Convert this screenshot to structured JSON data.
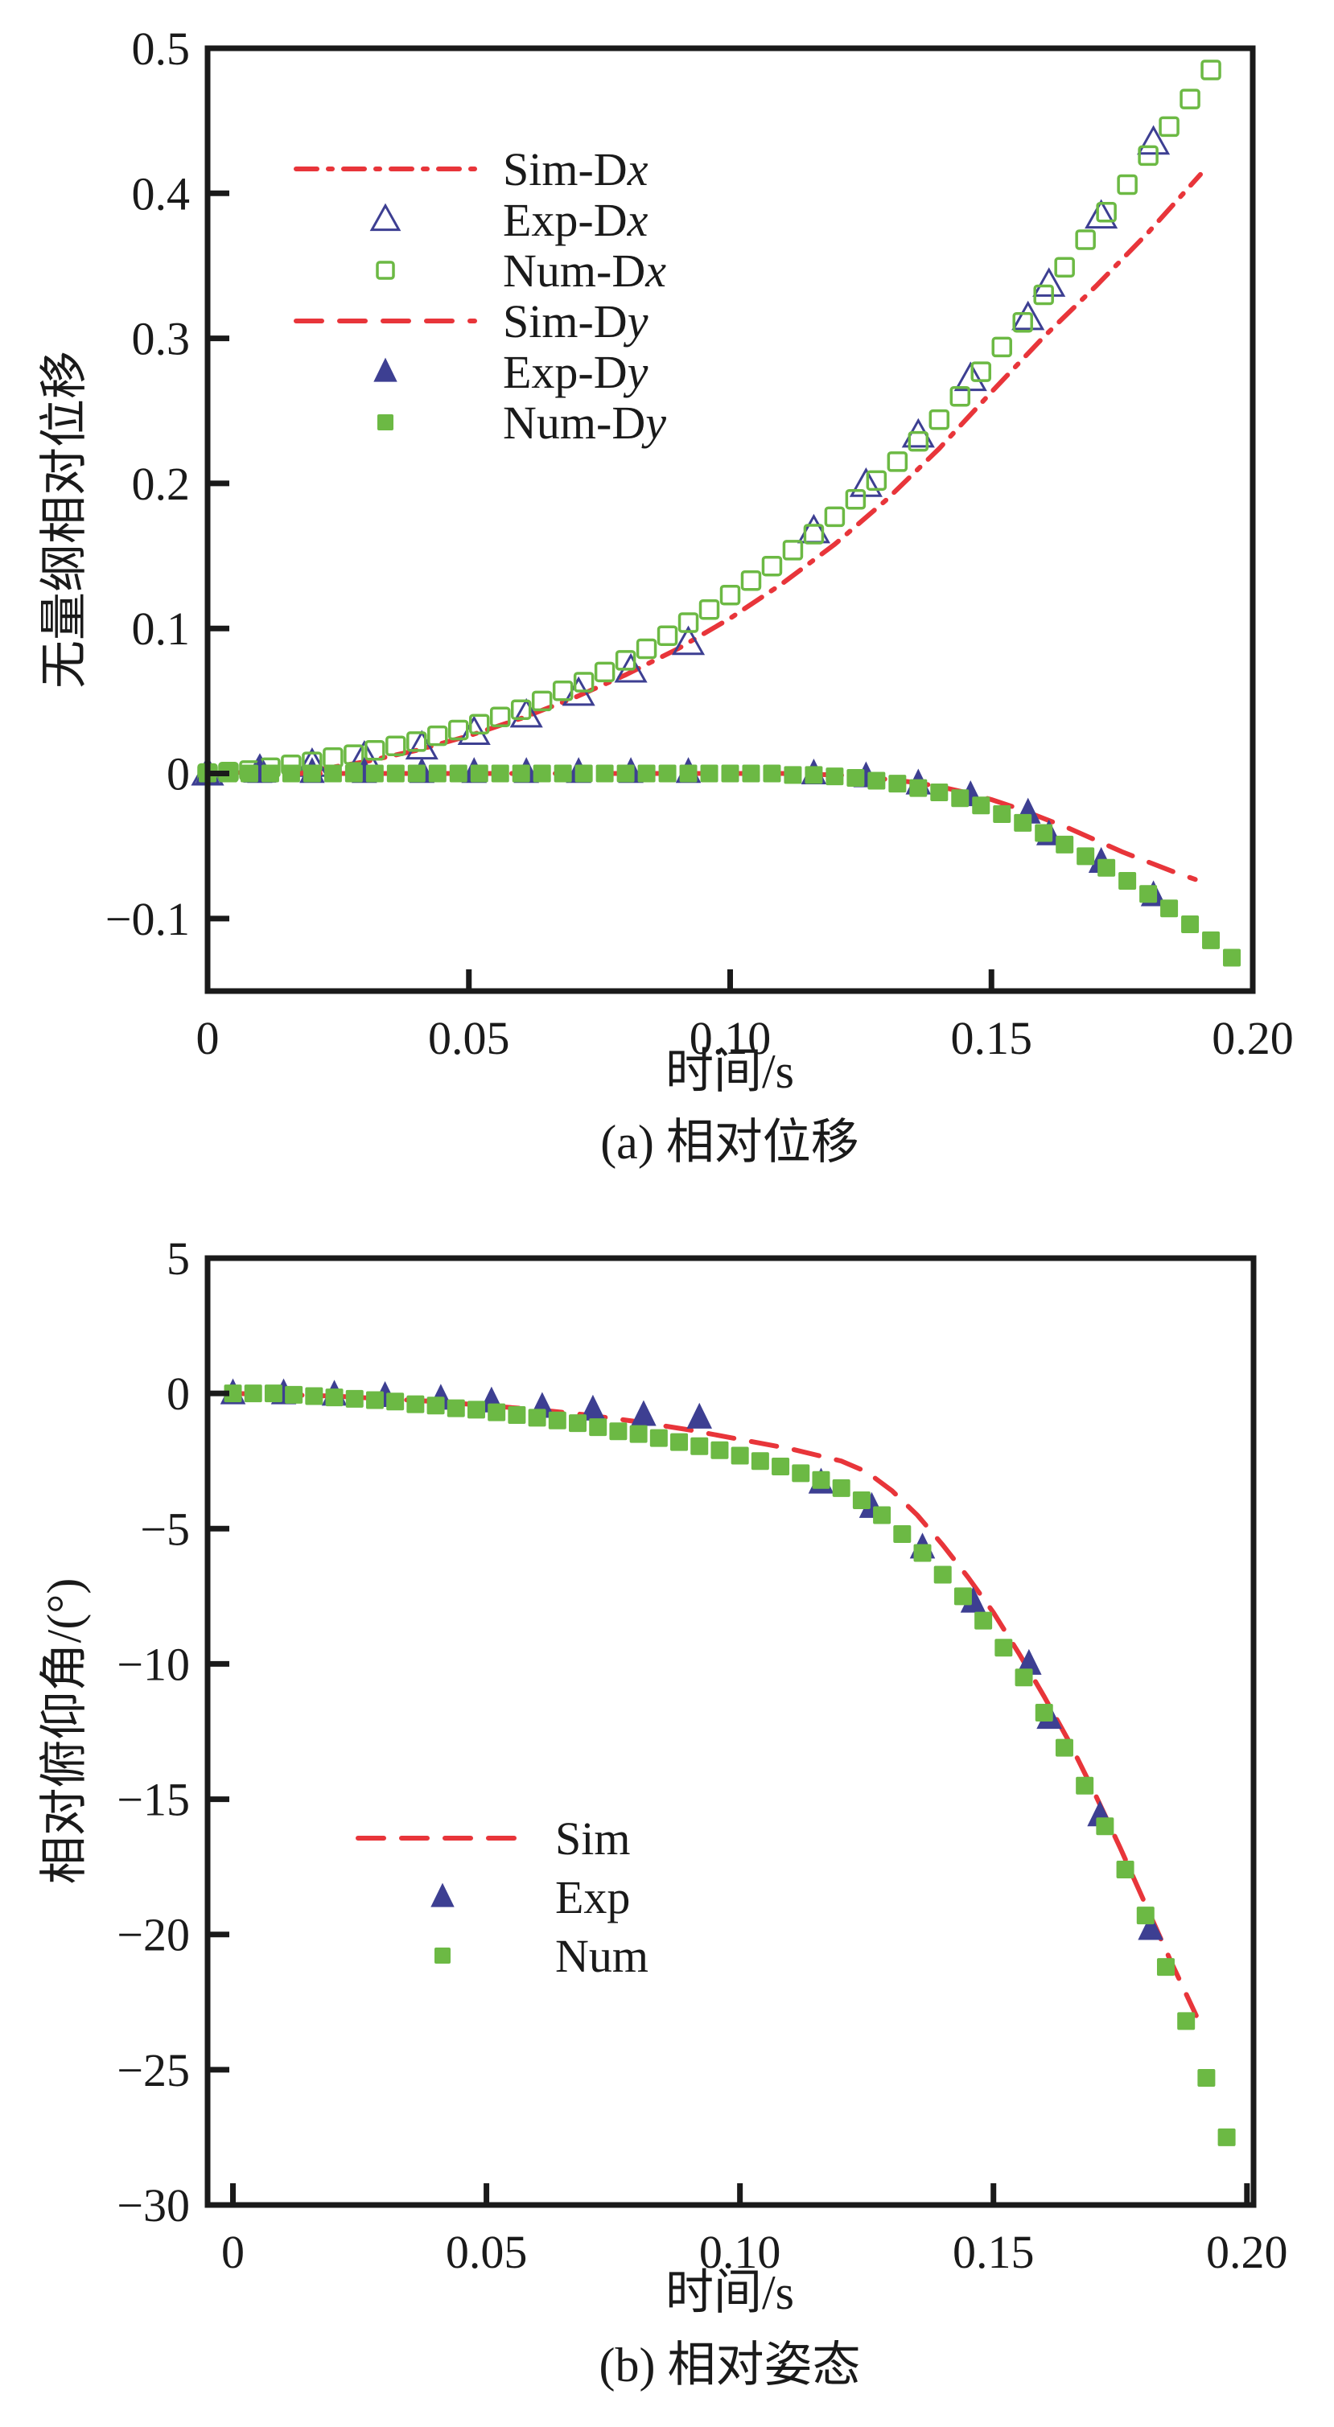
{
  "colors": {
    "sim": "#e8353a",
    "exp": "#3d3f92",
    "num": "#6cb944",
    "axis": "#1a1a1a"
  },
  "chart_data": [
    {
      "id": "a",
      "type": "line+scatter",
      "caption": "(a) 相对位移",
      "xlabel": "时间/s",
      "ylabel": "无量纲相对位移",
      "xlim": [
        0,
        0.2
      ],
      "ylim": [
        -0.15,
        0.5
      ],
      "xticks": [
        0,
        0.05,
        0.1,
        0.15,
        0.2
      ],
      "xtick_labels": [
        "0",
        "0.05",
        "0.10",
        "0.15",
        "0.20"
      ],
      "yticks": [
        -0.1,
        0,
        0.1,
        0.2,
        0.3,
        0.4,
        0.5
      ],
      "ytick_labels": [
        "−0.1",
        "0",
        "0.1",
        "0.2",
        "0.3",
        "0.4",
        "0.5"
      ],
      "grid": false,
      "legend_position": "top-left",
      "series": [
        {
          "name": "Sim-Dx",
          "label_prefix": "Sim-D",
          "label_var": "x",
          "kind": "line",
          "style": "dash-dot",
          "color_key": "sim",
          "x": [
            0,
            0.02,
            0.03,
            0.04,
            0.05,
            0.06,
            0.07,
            0.08,
            0.09,
            0.1,
            0.11,
            0.12,
            0.13,
            0.14,
            0.15,
            0.16,
            0.17,
            0.18,
            0.19
          ],
          "y": [
            0,
            0.002,
            0.008,
            0.016,
            0.026,
            0.038,
            0.052,
            0.068,
            0.086,
            0.107,
            0.131,
            0.158,
            0.189,
            0.224,
            0.263,
            0.301,
            0.336,
            0.373,
            0.413
          ]
        },
        {
          "name": "Exp-Dx",
          "label_prefix": "Exp-D",
          "label_var": "x",
          "kind": "scatter",
          "marker": "triangle-open",
          "color_key": "exp",
          "x": [
            0,
            0.01,
            0.02,
            0.03,
            0.041,
            0.051,
            0.061,
            0.071,
            0.081,
            0.092,
            0.116,
            0.126,
            0.136,
            0.146,
            0.157,
            0.161,
            0.171,
            0.181
          ],
          "y": [
            0,
            0.002,
            0.006,
            0.011,
            0.018,
            0.028,
            0.04,
            0.055,
            0.071,
            0.09,
            0.167,
            0.199,
            0.233,
            0.272,
            0.314,
            0.337,
            0.384,
            0.435
          ]
        },
        {
          "name": "Num-Dx",
          "label_prefix": "Num-D",
          "label_var": "x",
          "kind": "scatter",
          "marker": "square-open",
          "color_key": "num",
          "x": [
            0,
            0.004,
            0.008,
            0.012,
            0.016,
            0.02,
            0.024,
            0.028,
            0.032,
            0.036,
            0.04,
            0.044,
            0.048,
            0.052,
            0.056,
            0.06,
            0.064,
            0.068,
            0.072,
            0.076,
            0.08,
            0.084,
            0.088,
            0.092,
            0.096,
            0.1,
            0.104,
            0.108,
            0.112,
            0.116,
            0.12,
            0.124,
            0.128,
            0.132,
            0.136,
            0.14,
            0.144,
            0.148,
            0.152,
            0.156,
            0.16,
            0.164,
            0.168,
            0.172,
            0.176,
            0.18,
            0.184,
            0.188,
            0.192
          ],
          "y": [
            0,
            0.001,
            0.002,
            0.004,
            0.006,
            0.008,
            0.011,
            0.013,
            0.016,
            0.019,
            0.022,
            0.026,
            0.03,
            0.034,
            0.039,
            0.044,
            0.05,
            0.057,
            0.063,
            0.07,
            0.078,
            0.086,
            0.095,
            0.104,
            0.113,
            0.123,
            0.133,
            0.143,
            0.154,
            0.165,
            0.177,
            0.189,
            0.202,
            0.215,
            0.229,
            0.244,
            0.26,
            0.277,
            0.294,
            0.311,
            0.33,
            0.349,
            0.368,
            0.387,
            0.406,
            0.426,
            0.446,
            0.465,
            0.485
          ]
        },
        {
          "name": "Sim-Dy",
          "label_prefix": "Sim-D",
          "label_var": "y",
          "kind": "line",
          "style": "dashed",
          "color_key": "sim",
          "x": [
            0,
            0.02,
            0.04,
            0.06,
            0.08,
            0.1,
            0.11,
            0.12,
            0.125,
            0.13,
            0.135,
            0.14,
            0.145,
            0.15,
            0.155,
            0.16,
            0.165,
            0.17,
            0.175,
            0.18,
            0.185,
            0.189
          ],
          "y": [
            0,
            0,
            0,
            0,
            0,
            0,
            0,
            -0.001,
            -0.002,
            -0.004,
            -0.006,
            -0.009,
            -0.013,
            -0.018,
            -0.024,
            -0.031,
            -0.038,
            -0.046,
            -0.054,
            -0.061,
            -0.068,
            -0.073
          ]
        },
        {
          "name": "Exp-Dy",
          "label_prefix": "Exp-D",
          "label_var": "y",
          "kind": "scatter",
          "marker": "triangle-filled",
          "color_key": "exp",
          "x": [
            0,
            0.01,
            0.02,
            0.03,
            0.041,
            0.051,
            0.061,
            0.071,
            0.081,
            0.092,
            0.116,
            0.126,
            0.136,
            0.146,
            0.157,
            0.161,
            0.171,
            0.181
          ],
          "y": [
            0,
            0.001,
            0.001,
            0.001,
            0.001,
            0.001,
            0.001,
            0.001,
            0.001,
            0.001,
            0,
            -0.002,
            -0.007,
            -0.015,
            -0.027,
            -0.042,
            -0.061,
            -0.084
          ]
        },
        {
          "name": "Num-Dy",
          "label_prefix": "Num-D",
          "label_var": "y",
          "kind": "scatter",
          "marker": "square-filled",
          "color_key": "num",
          "x": [
            0,
            0.004,
            0.008,
            0.012,
            0.016,
            0.02,
            0.024,
            0.028,
            0.032,
            0.036,
            0.04,
            0.044,
            0.048,
            0.052,
            0.056,
            0.06,
            0.064,
            0.068,
            0.072,
            0.076,
            0.08,
            0.084,
            0.088,
            0.092,
            0.096,
            0.1,
            0.104,
            0.108,
            0.112,
            0.116,
            0.12,
            0.124,
            0.128,
            0.132,
            0.136,
            0.14,
            0.144,
            0.148,
            0.152,
            0.156,
            0.16,
            0.164,
            0.168,
            0.172,
            0.176,
            0.18,
            0.184,
            0.188,
            0.192,
            0.196
          ],
          "y": [
            0,
            0,
            0,
            0,
            0,
            0,
            0,
            0,
            0,
            0,
            0,
            0,
            0,
            0,
            0,
            0,
            0,
            0,
            0,
            0,
            0,
            0,
            0,
            0,
            0,
            0,
            0,
            0,
            -0.001,
            -0.001,
            -0.002,
            -0.003,
            -0.005,
            -0.007,
            -0.01,
            -0.013,
            -0.017,
            -0.022,
            -0.028,
            -0.034,
            -0.041,
            -0.049,
            -0.057,
            -0.065,
            -0.074,
            -0.083,
            -0.093,
            -0.104,
            -0.115,
            -0.127
          ]
        }
      ]
    },
    {
      "id": "b",
      "type": "line+scatter",
      "caption": "(b) 相对姿态",
      "xlabel": "时间/s",
      "ylabel": "相对俯仰角/(°)",
      "xlim": [
        -0.005,
        0.2013
      ],
      "ylim": [
        -30,
        5
      ],
      "xticks": [
        0,
        0.05,
        0.1,
        0.15,
        0.2
      ],
      "xtick_labels": [
        "0",
        "0.05",
        "0.10",
        "0.15",
        "0.20"
      ],
      "yticks": [
        -30,
        -25,
        -20,
        -15,
        -10,
        -5,
        0,
        5
      ],
      "ytick_labels": [
        "−30",
        "−25",
        "−20",
        "−15",
        "−10",
        "−5",
        "0",
        "5"
      ],
      "grid": false,
      "legend_position": "center-left",
      "series": [
        {
          "name": "Sim",
          "label_prefix": "Sim",
          "label_var": "",
          "kind": "line",
          "style": "dashed",
          "color_key": "sim",
          "x": [
            0,
            0.01,
            0.02,
            0.03,
            0.04,
            0.05,
            0.06,
            0.07,
            0.08,
            0.09,
            0.1,
            0.11,
            0.12,
            0.125,
            0.13,
            0.135,
            0.14,
            0.145,
            0.15,
            0.155,
            0.16,
            0.165,
            0.17,
            0.175,
            0.18,
            0.185,
            0.19
          ],
          "y": [
            0,
            -0.05,
            -0.1,
            -0.2,
            -0.3,
            -0.45,
            -0.6,
            -0.8,
            -1.05,
            -1.35,
            -1.7,
            -2.05,
            -2.5,
            -2.9,
            -3.6,
            -4.5,
            -5.6,
            -6.8,
            -8.1,
            -9.6,
            -11.2,
            -12.9,
            -14.8,
            -16.8,
            -18.9,
            -21.0,
            -23.0
          ]
        },
        {
          "name": "Exp",
          "label_prefix": "Exp",
          "label_var": "",
          "kind": "scatter",
          "marker": "triangle-filled",
          "color_key": "exp",
          "x": [
            0,
            0.01,
            0.02,
            0.03,
            0.041,
            0.051,
            0.061,
            0.071,
            0.081,
            0.092,
            0.116,
            0.126,
            0.136,
            0.146,
            0.157,
            0.161,
            0.171,
            0.181
          ],
          "y": [
            0,
            0,
            -0.05,
            -0.1,
            -0.2,
            -0.3,
            -0.5,
            -0.6,
            -0.8,
            -0.9,
            -3.3,
            -4.2,
            -5.7,
            -7.7,
            -10.0,
            -12.0,
            -15.6,
            -19.8
          ]
        },
        {
          "name": "Num",
          "label_prefix": "Num",
          "label_var": "",
          "kind": "scatter",
          "marker": "square-filled",
          "color_key": "num",
          "x": [
            0,
            0.004,
            0.008,
            0.012,
            0.016,
            0.02,
            0.024,
            0.028,
            0.032,
            0.036,
            0.04,
            0.044,
            0.048,
            0.052,
            0.056,
            0.06,
            0.064,
            0.068,
            0.072,
            0.076,
            0.08,
            0.084,
            0.088,
            0.092,
            0.096,
            0.1,
            0.104,
            0.108,
            0.112,
            0.116,
            0.12,
            0.124,
            0.128,
            0.132,
            0.136,
            0.14,
            0.144,
            0.148,
            0.152,
            0.156,
            0.16,
            0.164,
            0.168,
            0.172,
            0.176,
            0.18,
            0.184,
            0.188,
            0.192,
            0.196
          ],
          "y": [
            0,
            0,
            0,
            -0.05,
            -0.1,
            -0.15,
            -0.2,
            -0.25,
            -0.3,
            -0.4,
            -0.45,
            -0.55,
            -0.6,
            -0.7,
            -0.8,
            -0.9,
            -1.0,
            -1.1,
            -1.25,
            -1.4,
            -1.5,
            -1.65,
            -1.8,
            -1.95,
            -2.1,
            -2.3,
            -2.5,
            -2.7,
            -2.95,
            -3.2,
            -3.5,
            -3.95,
            -4.5,
            -5.2,
            -5.9,
            -6.7,
            -7.5,
            -8.4,
            -9.4,
            -10.5,
            -11.8,
            -13.1,
            -14.5,
            -16.0,
            -17.6,
            -19.3,
            -21.2,
            -23.2,
            -25.3,
            -27.5
          ]
        }
      ]
    }
  ]
}
